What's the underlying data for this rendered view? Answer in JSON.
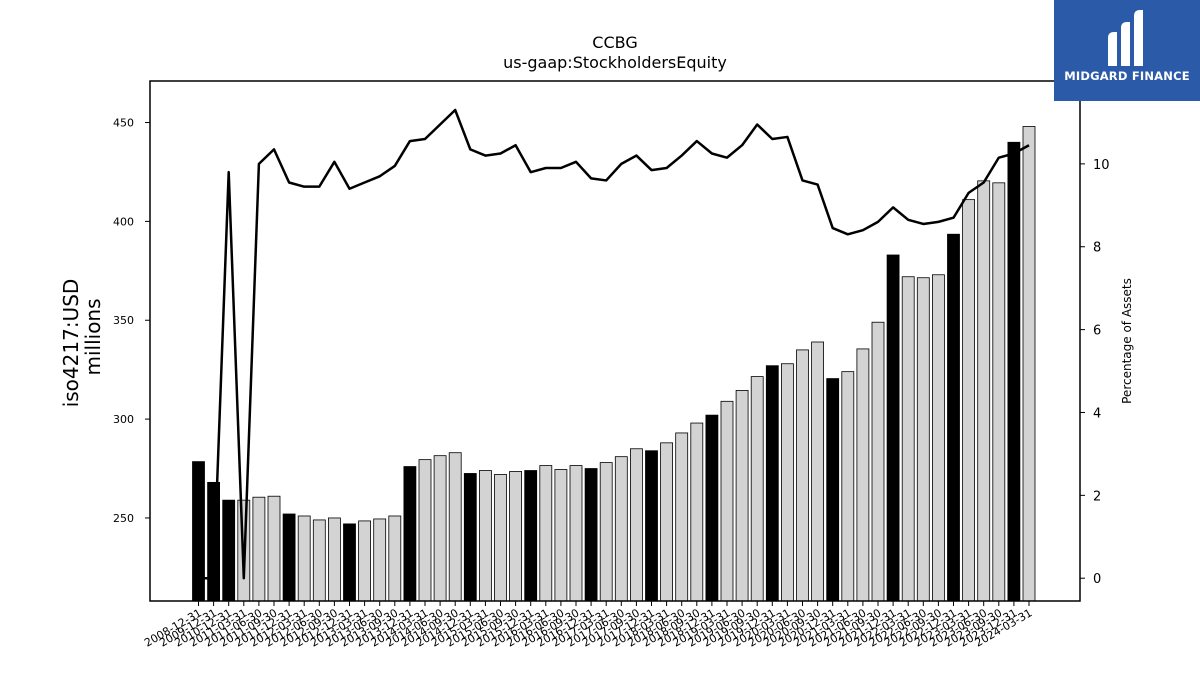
{
  "brand": {
    "name": "MIDGARD FINANCE",
    "color": "#2b5aa8"
  },
  "chart_data": {
    "type": "bar",
    "title": "CCBG",
    "subtitle": "us-gaap:StockholdersEquity",
    "ylabel": "iso4217:USD\nmillions",
    "y2label": "Percentage of Assets",
    "ylim": [
      208,
      471
    ],
    "y2lim": [
      -0.55,
      12.0
    ],
    "yticks": [
      250,
      300,
      350,
      400,
      450
    ],
    "y2ticks": [
      0,
      2,
      4,
      6,
      8,
      10
    ],
    "bar_colors": {
      "annual": "#000000",
      "quarterly": "#d3d3d3",
      "edge": "#000000"
    },
    "line_color": "#000000",
    "categories": [
      "2008-12-31",
      "2009-12-31",
      "2010-12-31",
      "2011-03-31",
      "2011-06-30",
      "2011-09-30",
      "2011-12-31",
      "2012-03-31",
      "2012-06-30",
      "2012-09-30",
      "2012-12-31",
      "2013-03-31",
      "2013-06-30",
      "2013-09-30",
      "2013-12-31",
      "2014-03-31",
      "2014-06-30",
      "2014-09-30",
      "2014-12-31",
      "2015-03-31",
      "2015-06-30",
      "2015-09-30",
      "2015-12-31",
      "2016-03-31",
      "2016-06-30",
      "2016-09-30",
      "2016-12-31",
      "2017-03-31",
      "2017-06-30",
      "2017-09-30",
      "2017-12-31",
      "2018-03-31",
      "2018-06-30",
      "2018-09-30",
      "2018-12-31",
      "2019-03-31",
      "2019-06-30",
      "2019-09-30",
      "2019-12-31",
      "2020-03-31",
      "2020-06-30",
      "2020-09-30",
      "2020-12-31",
      "2021-03-31",
      "2021-06-30",
      "2021-09-30",
      "2021-12-31",
      "2022-03-31",
      "2022-06-30",
      "2022-09-30",
      "2022-12-31",
      "2023-03-31",
      "2023-06-30",
      "2023-09-30",
      "2023-12-31",
      "2024-03-31"
    ],
    "period_type": [
      "annual",
      "annual",
      "annual",
      "quarterly",
      "quarterly",
      "quarterly",
      "annual",
      "quarterly",
      "quarterly",
      "quarterly",
      "annual",
      "quarterly",
      "quarterly",
      "quarterly",
      "annual",
      "quarterly",
      "quarterly",
      "quarterly",
      "annual",
      "quarterly",
      "quarterly",
      "quarterly",
      "annual",
      "quarterly",
      "quarterly",
      "quarterly",
      "annual",
      "quarterly",
      "quarterly",
      "quarterly",
      "annual",
      "quarterly",
      "quarterly",
      "quarterly",
      "annual",
      "quarterly",
      "quarterly",
      "quarterly",
      "annual",
      "quarterly",
      "quarterly",
      "quarterly",
      "annual",
      "quarterly",
      "quarterly",
      "quarterly",
      "annual",
      "quarterly",
      "quarterly",
      "quarterly",
      "annual",
      "quarterly",
      "quarterly",
      "quarterly",
      "annual",
      "quarterly"
    ],
    "series": [
      {
        "values": [
          278.5,
          268.0,
          259.0,
          259.0,
          260.5,
          261.0,
          252.0,
          251.0,
          249.0,
          250.0,
          247.0,
          248.5,
          249.5,
          251.0,
          276.0,
          279.5,
          281.5,
          283.0,
          272.5,
          274.0,
          272.0,
          273.5,
          274.0,
          276.5,
          274.5,
          276.5,
          275.0,
          278.0,
          281.0,
          285.0,
          284.0,
          288.0,
          293.0,
          298.0,
          302.0,
          309.0,
          314.5,
          321.5,
          327.0,
          328.0,
          335.0,
          339.0,
          320.5,
          324.0,
          335.5,
          349.0,
          383.0,
          372.0,
          371.5,
          373.0,
          393.5,
          411.0,
          420.5,
          419.5,
          440.0,
          448.0
        ]
      },
      {
        "axis": "right",
        "values": [
          0.0,
          0.0,
          9.8,
          0.0,
          10.0,
          10.35,
          9.55,
          9.45,
          9.45,
          10.05,
          9.4,
          9.55,
          9.7,
          9.95,
          10.55,
          10.6,
          10.95,
          11.3,
          10.35,
          10.2,
          10.25,
          10.45,
          9.8,
          9.9,
          9.9,
          10.05,
          9.65,
          9.6,
          10.0,
          10.2,
          9.85,
          9.9,
          10.2,
          10.55,
          10.25,
          10.15,
          10.45,
          10.95,
          10.6,
          10.65,
          9.6,
          9.5,
          8.45,
          8.3,
          8.4,
          8.6,
          8.95,
          8.65,
          8.55,
          8.6,
          8.7,
          9.3,
          9.55,
          10.15,
          10.25,
          10.45
        ]
      }
    ]
  }
}
